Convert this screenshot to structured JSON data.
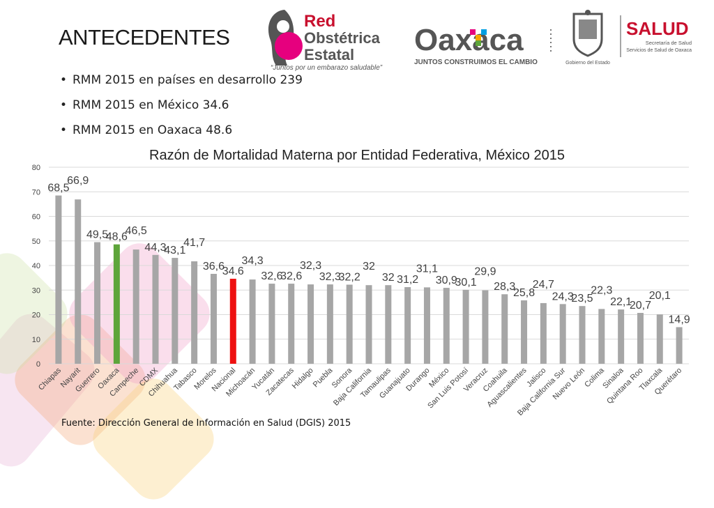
{
  "slide": {
    "title": "ANTECEDENTES",
    "bullets": [
      "RMM 2015 en países en desarrollo 239",
      "RMM 2015 en México 34.6",
      "RMM 2015 en Oaxaca 48.6"
    ],
    "source": "Fuente: Dirección General de Información en Salud (DGIS) 2015"
  },
  "logos": {
    "red": {
      "line1": "Red",
      "line2": "Obstétrica",
      "line3": "Estatal",
      "tagline": "“Juntos por un embarazo saludable”"
    },
    "oaxaca": {
      "name": "Oaxaca",
      "tagline": "JUNTOS CONSTRUIMOS EL CAMBIO"
    },
    "gobierno": {
      "label": "Gobierno del Estado"
    },
    "salud": {
      "name": "SALUD",
      "line1": "Secretaría de Salud",
      "line2": "Servicios de Salud de Oaxaca"
    }
  },
  "colors": {
    "bar_default": "#a6a6a6",
    "bar_oaxaca": "#5ea53a",
    "bar_nacional": "#ee1111",
    "brand_red": "#c8102e",
    "brand_pink": "#e6007e"
  },
  "chart_data": {
    "type": "bar",
    "title": "Razón de Mortalidad Materna por Entidad Federativa,  México 2015",
    "ylim": [
      0,
      80
    ],
    "yticks": [
      "0",
      "10",
      "20",
      "30",
      "40",
      "50",
      "60",
      "70",
      "80"
    ],
    "grid": true,
    "categories": [
      "Chiapas",
      "Nayarit",
      "Guerrero",
      "Oaxaca",
      "Campeche",
      "CDMX",
      "Chihuahua",
      "Tabasco",
      "Morelos",
      "Nacional",
      "Michoacán",
      "Yucatán",
      "Zacatecas",
      "Hidalgo",
      "Puebla",
      "Sonora",
      "Baja California",
      "Tamaulipas",
      "Guanajuato",
      "Durango",
      "México",
      "San Luis Potosí",
      "Veracruz",
      "Coahuila",
      "Aguascalientes",
      "Jalisco",
      "Baja California Sur",
      "Nuevo León",
      "Colima",
      "Sinaloa",
      "Quintana Roo",
      "Tlaxcala",
      "Querétaro"
    ],
    "values": [
      68.5,
      66.9,
      49.5,
      48.6,
      46.5,
      44.3,
      43.1,
      41.7,
      36.6,
      34.6,
      34.3,
      32.6,
      32.6,
      32.3,
      32.3,
      32.2,
      32,
      32,
      31.2,
      31.1,
      30.9,
      30.1,
      29.9,
      28.3,
      25.8,
      24.7,
      24.3,
      23.5,
      22.3,
      22.1,
      20.7,
      20.1,
      14.9
    ],
    "value_labels": [
      "68,5",
      "66,9",
      "49,5",
      "48,6",
      "46,5",
      "44,3",
      "43,1",
      "41,7",
      "36,6",
      "34.6",
      "34,3",
      "32,6",
      "32,6",
      "32,3",
      "32,3",
      "32,2",
      "32",
      "32",
      "31,2",
      "31,1",
      "30,9",
      "30,1",
      "29,9",
      "28,3",
      "25,8",
      "24,7",
      "24,3",
      "23,5",
      "22,3",
      "22,1",
      "20,7",
      "20,1",
      "14,9"
    ]
  }
}
